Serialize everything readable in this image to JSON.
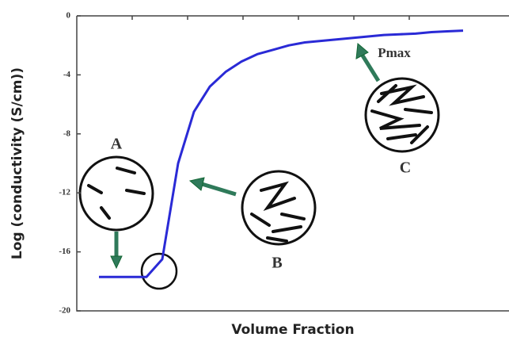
{
  "chart_data": {
    "type": "line",
    "y_label": "Log (conductivity (S/cm))",
    "x_label": "Volume Fraction",
    "annotations": [
      "A",
      "B",
      "C",
      "Pmax"
    ],
    "categories": [
      null,
      null,
      null,
      null,
      null,
      null,
      null,
      null,
      null,
      null,
      null,
      null,
      null,
      null,
      null,
      null,
      null,
      null,
      null,
      null,
      null,
      null,
      null,
      null
    ],
    "series": [
      {
        "name": null,
        "color": "#2a2ad6",
        "values": [
          -17.7,
          -17.7,
          -17.7,
          -17.7,
          -16.5,
          -10,
          -6.5,
          -4.8,
          -3.8,
          -3.1,
          -2.6,
          -2.3,
          -2.0,
          -1.8,
          -1.7,
          -1.6,
          -1.5,
          -1.4,
          -1.3,
          -1.25,
          -1.2,
          -1.1,
          -1.05,
          -1.0
        ]
      }
    ],
    "ylim": [
      -20,
      0
    ],
    "yticks": [
      0,
      -4,
      -8,
      -12,
      -16,
      -20
    ]
  }
}
